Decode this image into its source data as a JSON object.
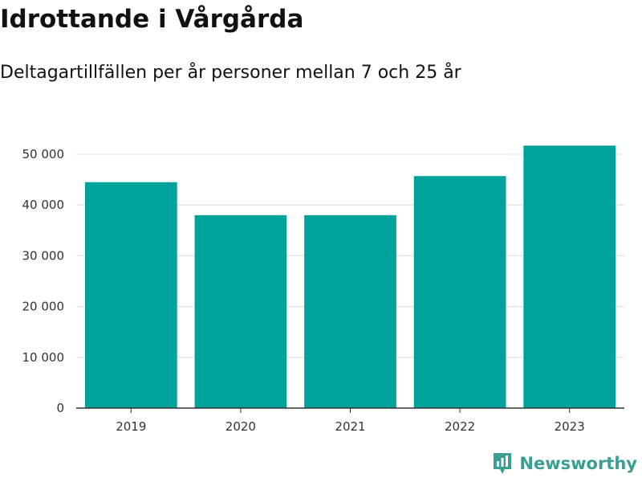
{
  "header": {
    "title": "Idrottande i Vårgårda",
    "subtitle": "Deltagartillfällen per år personer mellan 7 och 25 år"
  },
  "brand": {
    "name": "Newsworthy",
    "icon": "newsworthy-logo-icon",
    "color": "#3a9e92"
  },
  "colors": {
    "bar": "#00a39a",
    "grid": "#dddddd",
    "axis": "#333333"
  },
  "chart_data": {
    "type": "bar",
    "categories": [
      "2019",
      "2020",
      "2021",
      "2022",
      "2023"
    ],
    "values": [
      44500,
      38000,
      38000,
      45700,
      51700
    ],
    "ylim": [
      0,
      50000
    ],
    "yticks": [
      0,
      10000,
      20000,
      30000,
      40000,
      50000
    ],
    "ytick_labels": [
      "0",
      "10 000",
      "20 000",
      "30 000",
      "40 000",
      "50 000"
    ],
    "grid": true,
    "legend": "none"
  }
}
